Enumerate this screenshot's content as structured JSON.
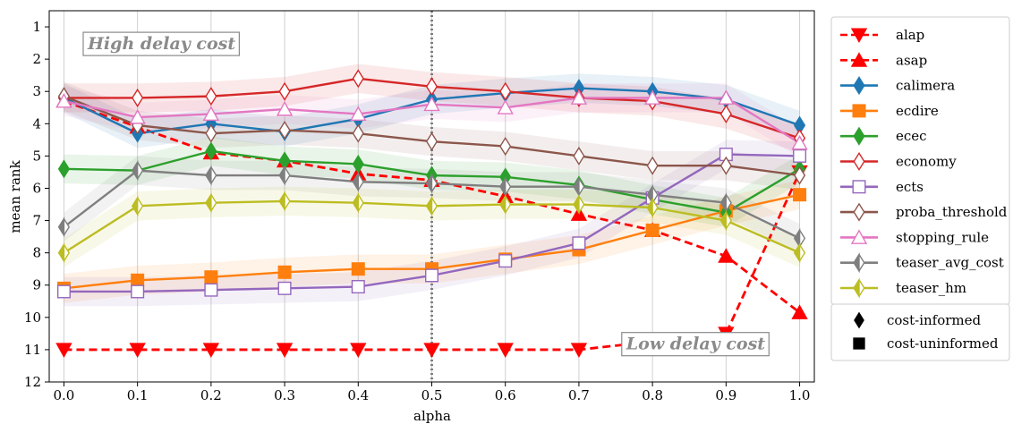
{
  "chart_data": {
    "type": "line",
    "xlabel": "alpha",
    "ylabel": "mean rank",
    "x": [
      0.0,
      0.1,
      0.2,
      0.3,
      0.4,
      0.5,
      0.6,
      0.7,
      0.8,
      0.9,
      1.0
    ],
    "x_tick_labels": [
      "0.0",
      "0.1",
      "0.2",
      "0.3",
      "0.4",
      "0.5",
      "0.6",
      "0.7",
      "0.8",
      "0.9",
      "1.0"
    ],
    "xlim": [
      -0.02,
      1.02
    ],
    "ylim": [
      12,
      0.5
    ],
    "y_inverted": true,
    "y_ticks": [
      1,
      2,
      3,
      4,
      5,
      6,
      7,
      8,
      9,
      10,
      11,
      12
    ],
    "y_tick_labels": [
      "1",
      "2",
      "3",
      "4",
      "5",
      "6",
      "7",
      "8",
      "9",
      "10",
      "11",
      "12"
    ],
    "grid": "vertical",
    "reference_line_x": 0.5,
    "legend_position": "right-outside",
    "annotations": [
      {
        "text": "High delay cost",
        "x": 0.025,
        "y": 1.5
      },
      {
        "text": "Low delay cost",
        "x": 0.757,
        "y": 10.8
      }
    ],
    "series": [
      {
        "name": "alap",
        "color": "#ff0000",
        "marker": "triangle-down",
        "filled": true,
        "dashed": true,
        "band": false,
        "values": [
          11,
          11,
          11,
          11,
          11,
          11,
          11,
          11,
          null,
          10.5,
          5.5
        ]
      },
      {
        "name": "asap",
        "color": "#ff0000",
        "marker": "triangle-up",
        "filled": true,
        "dashed": true,
        "band": false,
        "values": [
          3.3,
          4.1,
          4.9,
          5.15,
          5.55,
          5.75,
          6.25,
          6.8,
          7.3,
          8.1,
          9.85
        ]
      },
      {
        "name": "calimera",
        "color": "#1f77b4",
        "marker": "diamond",
        "filled": true,
        "dashed": false,
        "band": true,
        "values": [
          3.2,
          4.3,
          4.0,
          4.25,
          3.85,
          3.25,
          3.05,
          2.9,
          3.0,
          3.25,
          4.05
        ]
      },
      {
        "name": "ecdire",
        "color": "#ff7f0e",
        "marker": "square",
        "filled": true,
        "dashed": false,
        "band": true,
        "values": [
          9.1,
          8.85,
          8.75,
          8.6,
          8.5,
          8.5,
          8.2,
          7.9,
          7.3,
          6.7,
          6.2
        ]
      },
      {
        "name": "ecec",
        "color": "#2ca02c",
        "marker": "diamond",
        "filled": true,
        "dashed": false,
        "band": true,
        "values": [
          5.4,
          5.45,
          4.85,
          5.15,
          5.25,
          5.6,
          5.65,
          5.9,
          6.35,
          6.75,
          5.4
        ]
      },
      {
        "name": "economy",
        "color": "#d62728",
        "marker": "diamond",
        "filled": false,
        "dashed": false,
        "band": true,
        "values": [
          3.2,
          3.2,
          3.15,
          3.0,
          2.6,
          2.85,
          3.0,
          3.2,
          3.3,
          3.7,
          4.45
        ]
      },
      {
        "name": "ects",
        "color": "#9467bd",
        "marker": "square",
        "filled": false,
        "dashed": false,
        "band": true,
        "values": [
          9.2,
          9.2,
          9.15,
          9.1,
          9.05,
          8.7,
          8.25,
          7.7,
          6.3,
          4.95,
          5.0
        ]
      },
      {
        "name": "proba_threshold",
        "color": "#8c564b",
        "marker": "diamond",
        "filled": false,
        "dashed": false,
        "band": true,
        "values": [
          3.15,
          4.05,
          4.3,
          4.2,
          4.3,
          4.55,
          4.7,
          5.0,
          5.3,
          5.3,
          5.6
        ]
      },
      {
        "name": "stopping_rule",
        "color": "#e377c2",
        "marker": "triangle-up",
        "filled": false,
        "dashed": false,
        "band": true,
        "values": [
          3.3,
          3.8,
          3.7,
          3.55,
          3.7,
          3.4,
          3.5,
          3.2,
          3.2,
          3.2,
          4.6
        ]
      },
      {
        "name": "teaser_avg_cost",
        "color": "#7f7f7f",
        "marker": "diamond-half",
        "filled": true,
        "dashed": false,
        "band": true,
        "values": [
          7.2,
          5.45,
          5.6,
          5.6,
          5.8,
          5.85,
          5.95,
          5.95,
          6.2,
          6.45,
          7.55
        ]
      },
      {
        "name": "teaser_hm",
        "color": "#bcbd22",
        "marker": "diamond-half",
        "filled": true,
        "dashed": false,
        "band": true,
        "values": [
          8.0,
          6.55,
          6.45,
          6.4,
          6.45,
          6.55,
          6.5,
          6.5,
          6.6,
          7.0,
          8.0
        ]
      }
    ],
    "marker_legend": [
      {
        "label": "cost-informed",
        "marker": "diamond"
      },
      {
        "label": "cost-uninformed",
        "marker": "square"
      }
    ]
  }
}
